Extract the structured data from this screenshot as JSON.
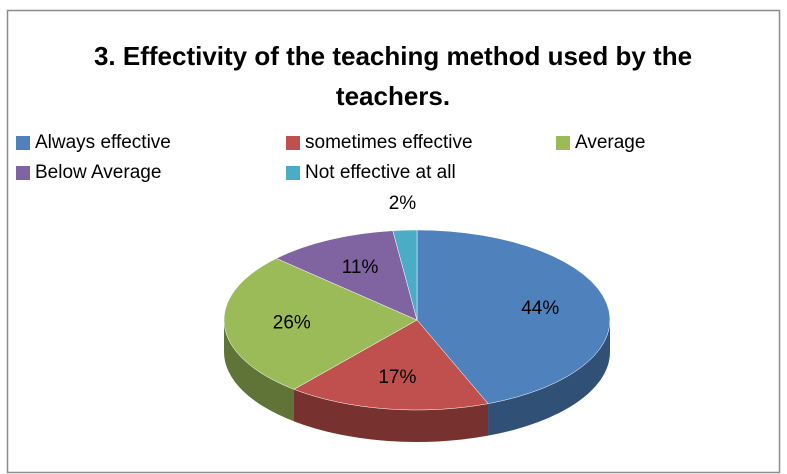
{
  "chart_data": {
    "type": "pie3d",
    "title": "3. Effectivity of the teaching method used by the teachers.",
    "categories": [
      "Always effective",
      "sometimes effective",
      "Average",
      "Below Average",
      "Not effective at all"
    ],
    "values": [
      44,
      17,
      26,
      11,
      2
    ],
    "value_labels": [
      "44%",
      "17%",
      "26%",
      "11%",
      "2%"
    ],
    "colors": [
      "#4f81bd",
      "#c0504d",
      "#9bbb59",
      "#8064a2",
      "#4bacc6"
    ],
    "legend": "top"
  }
}
